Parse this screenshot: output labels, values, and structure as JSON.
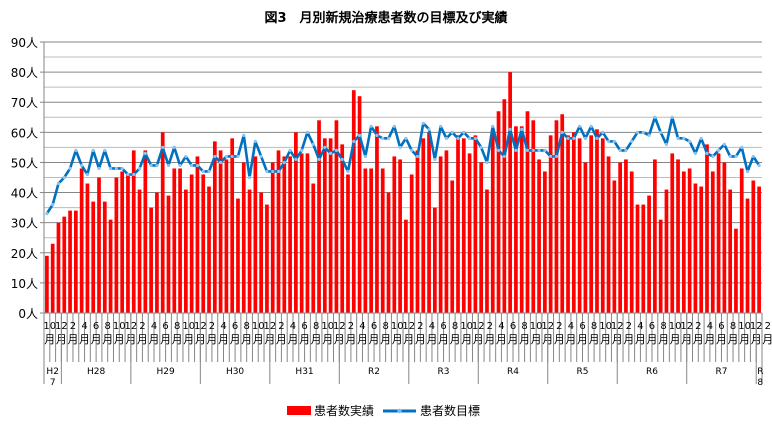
{
  "chart_data": {
    "type": "bar+line",
    "title": "図3　月別新規治療患者数の目標及び実績",
    "ylim": [
      0,
      90
    ],
    "y_ticks": [
      "0人",
      "10人",
      "20人",
      "30人",
      "40人",
      "50人",
      "60人",
      "70人",
      "80人",
      "90人"
    ],
    "grid": true,
    "legend_position": "bottom",
    "x_labels": [
      "10",
      "",
      "12",
      "",
      "2",
      "",
      "4",
      "",
      "6",
      "",
      "8",
      "",
      "10",
      "",
      "12",
      "",
      "2",
      "",
      "4",
      "",
      "6",
      "",
      "8",
      "",
      "10",
      "",
      "12",
      "",
      "2",
      "",
      "4",
      "",
      "6",
      "",
      "8",
      "",
      "10",
      "",
      "12",
      "",
      "2",
      "",
      "4",
      "",
      "6",
      "",
      "8",
      "",
      "10",
      "",
      "12",
      "",
      "2",
      "",
      "4",
      "",
      "6",
      "",
      "8",
      "",
      "10",
      "",
      "12",
      "",
      "2",
      "",
      "4",
      "",
      "6",
      "",
      "8",
      "",
      "10",
      "",
      "12",
      "",
      "2",
      "",
      "4",
      "",
      "6",
      "",
      "8",
      "",
      "10",
      "",
      "12",
      "",
      "2",
      "",
      "4",
      "",
      "6",
      "",
      "8",
      "",
      "10",
      "",
      "12",
      "",
      "2",
      "",
      "4",
      "",
      "6",
      "",
      "8",
      "",
      "10",
      "",
      "12",
      "",
      "2",
      "",
      "4",
      "",
      "6",
      "",
      "8",
      "",
      "10",
      "",
      "12",
      "",
      "2",
      "",
      "4",
      "",
      "6",
      "",
      "8",
      "",
      "10",
      "",
      "12",
      ""
    ],
    "month_suffix": "月",
    "year_groups": [
      {
        "label": "H27",
        "months": 3
      },
      {
        "label": "H28",
        "months": 12
      },
      {
        "label": "H29",
        "months": 12
      },
      {
        "label": "H30",
        "months": 12
      },
      {
        "label": "H31",
        "months": 12
      },
      {
        "label": "R2",
        "months": 12
      },
      {
        "label": "R3",
        "months": 12
      },
      {
        "label": "R4",
        "months": 12
      },
      {
        "label": "R5",
        "months": 12
      },
      {
        "label": "R6",
        "months": 12
      },
      {
        "label": "R7",
        "months": 12
      },
      {
        "label": "R8",
        "months": 1
      }
    ],
    "series": [
      {
        "name": "患者数実績",
        "type": "bar",
        "color": "#ff0000",
        "values": [
          19,
          23,
          30,
          32,
          34,
          34,
          48,
          43,
          37,
          45,
          37,
          31,
          45,
          47,
          46,
          54,
          41,
          54,
          35,
          40,
          60,
          39,
          48,
          48,
          41,
          46,
          52,
          46,
          42,
          57,
          54,
          51,
          58,
          38,
          50,
          41,
          52,
          40,
          36,
          50,
          54,
          52,
          52,
          60,
          53,
          53,
          43,
          64,
          58,
          58,
          64,
          56,
          46,
          74,
          72,
          48,
          48,
          62,
          48,
          40,
          52,
          51,
          31,
          46,
          54,
          58,
          60,
          35,
          52,
          54,
          44,
          59,
          58,
          53,
          59,
          50,
          41,
          61,
          67,
          71,
          80,
          62,
          62,
          67,
          64,
          51,
          47,
          59,
          64,
          66,
          59,
          60,
          58,
          50,
          59,
          61,
          58,
          52,
          44,
          50,
          51,
          47,
          36,
          36,
          39,
          51,
          31,
          41,
          53,
          51,
          47,
          48,
          43,
          42,
          56,
          47,
          53,
          50,
          41,
          28,
          48,
          38,
          44,
          42
        ]
      },
      {
        "name": "患者数目標",
        "type": "line",
        "color": "#0070c0",
        "values": [
          33,
          36,
          43,
          45,
          48,
          54,
          49,
          46,
          54,
          48,
          54,
          48,
          48,
          48,
          46,
          46,
          48,
          53,
          49,
          49,
          55,
          49,
          55,
          49,
          52,
          49,
          49,
          47,
          47,
          52,
          50,
          52,
          52,
          52,
          59,
          45,
          57,
          52,
          47,
          47,
          47,
          50,
          54,
          51,
          54,
          60,
          56,
          51,
          55,
          53,
          54,
          51,
          47,
          57,
          59,
          52,
          62,
          59,
          58,
          58,
          62,
          55,
          58,
          54,
          52,
          63,
          61,
          51,
          62,
          58,
          60,
          58,
          60,
          58,
          58,
          55,
          50,
          62,
          54,
          52,
          61,
          54,
          61,
          54,
          54,
          54,
          54,
          52,
          52,
          60,
          58,
          58,
          62,
          58,
          62,
          58,
          60,
          57,
          57,
          54,
          54,
          57,
          60,
          60,
          59,
          65,
          60,
          56,
          65,
          58,
          58,
          57,
          53,
          58,
          53,
          52,
          54,
          56,
          52,
          52,
          55,
          47,
          52,
          49
        ]
      }
    ]
  }
}
